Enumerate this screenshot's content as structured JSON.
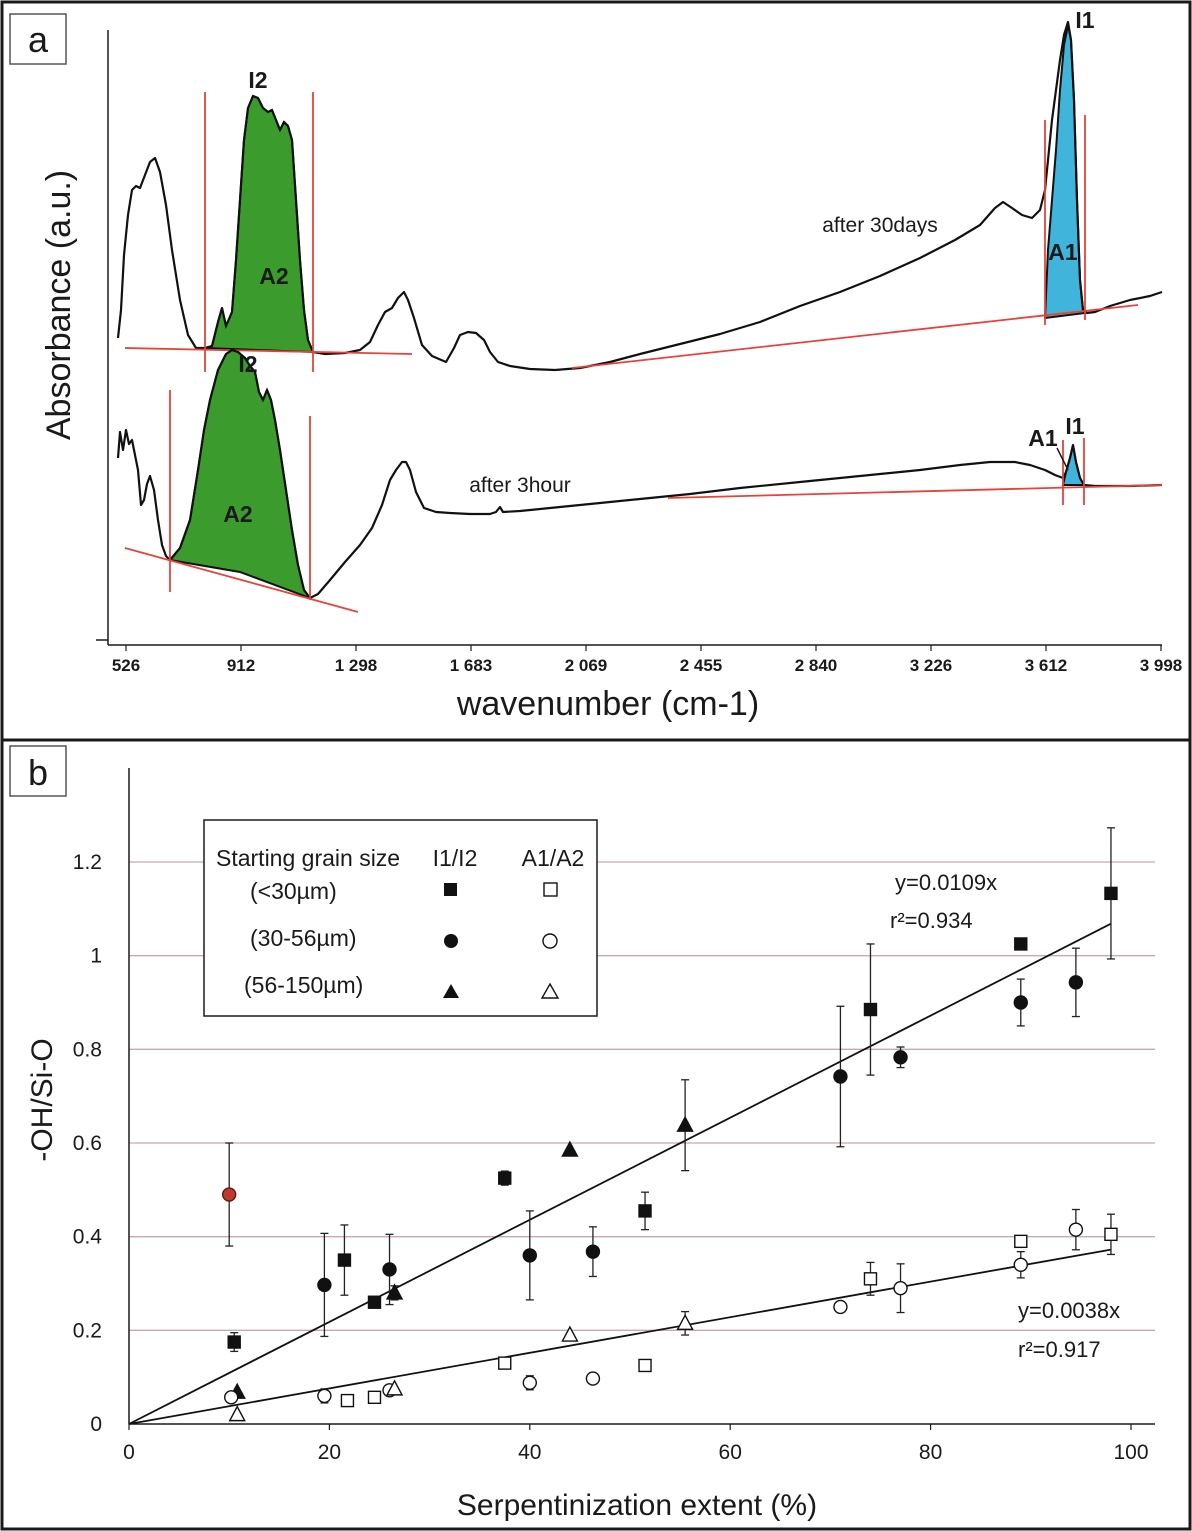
{
  "panel_a": {
    "tag": "a",
    "xlabel": "wavenumber (cm-1)",
    "ylabel": "Absorbance (a.u.)",
    "xticks": [
      "526",
      "912",
      "1 298",
      "1 683",
      "2 069",
      "2 455",
      "2 840",
      "3 226",
      "3 612",
      "3 998"
    ],
    "labels": {
      "top_spectrum": "after 30days",
      "bottom_spectrum": "after 3hour",
      "i1": "I1",
      "i2": "I2",
      "a1": "A1",
      "a2": "A2"
    },
    "colors": {
      "a2_band": "#3c9b2d",
      "a1_band": "#41b4dc",
      "baseline": "#e8423a"
    }
  },
  "chart_data": {
    "type": "scatter",
    "tag": "b",
    "xlabel": "Serpentinization extent (%)",
    "ylabel": "-OH/Si-O",
    "xlim": [
      0,
      100
    ],
    "ylim": [
      0,
      1.2
    ],
    "xticks": [
      "0",
      "20",
      "40",
      "60",
      "80",
      "100"
    ],
    "yticks": [
      "0",
      "0.2",
      "0.4",
      "0.6",
      "0.8",
      "1",
      "1.2"
    ],
    "grid": true,
    "legend": {
      "placement": "top-left",
      "header": [
        "Starting grain size",
        "I1/I2",
        "A1/A2"
      ],
      "rows": [
        "(<30µm)",
        "(30-56µm)",
        "(56-150µm)"
      ]
    },
    "fits": [
      {
        "slope": 0.0109,
        "label": "y=0.0109x",
        "r2_label": "r²=0.934",
        "x_end": 98
      },
      {
        "slope": 0.0038,
        "label": "y=0.0038x",
        "r2_label": "r²=0.917",
        "x_end": 98
      }
    ],
    "series": [
      {
        "name": "(<30µm) I1/I2",
        "marker": "square",
        "filled": true,
        "points": [
          [
            10.5,
            0.175,
            0.02
          ],
          [
            21.5,
            0.35,
            0.075
          ],
          [
            24.5,
            0.26,
            0
          ],
          [
            37.5,
            0.525,
            0.015
          ],
          [
            51.5,
            0.455,
            0.04
          ],
          [
            74,
            0.885,
            0.14
          ],
          [
            89,
            1.025,
            0
          ],
          [
            98,
            1.133,
            0.14
          ]
        ]
      },
      {
        "name": "(30-56µm) I1/I2",
        "marker": "circle",
        "filled": true,
        "points": [
          [
            19.5,
            0.297,
            0.11
          ],
          [
            26,
            0.33,
            0.075
          ],
          [
            40,
            0.36,
            0.095
          ],
          [
            46.3,
            0.368,
            0.053
          ],
          [
            71,
            0.742,
            0.15
          ],
          [
            77,
            0.783,
            0.022
          ],
          [
            89,
            0.9,
            0.05
          ],
          [
            94.5,
            0.943,
            0.073
          ]
        ]
      },
      {
        "name": "(30-56µm) I1/I2 highlighted",
        "marker": "circle",
        "filled": true,
        "color": "#c0392b",
        "points": [
          [
            10,
            0.49,
            0.11
          ]
        ]
      },
      {
        "name": "(56-150µm) I1/I2",
        "marker": "triangle",
        "filled": true,
        "points": [
          [
            10.8,
            0.068,
            0
          ],
          [
            26.5,
            0.28,
            0.015
          ],
          [
            44,
            0.585,
            0
          ],
          [
            55.5,
            0.638,
            0.097
          ]
        ]
      },
      {
        "name": "(<30µm) A1/A2",
        "marker": "square",
        "filled": false,
        "points": [
          [
            21.8,
            0.05,
            0
          ],
          [
            24.5,
            0.057,
            0
          ],
          [
            37.5,
            0.13,
            0
          ],
          [
            51.5,
            0.125,
            0
          ],
          [
            74,
            0.31,
            0.035
          ],
          [
            89,
            0.39,
            0
          ],
          [
            98,
            0.405,
            0.043
          ]
        ]
      },
      {
        "name": "(30-56µm) A1/A2",
        "marker": "circle",
        "filled": false,
        "points": [
          [
            10.2,
            0.057,
            0
          ],
          [
            19.5,
            0.06,
            0.015
          ],
          [
            26,
            0.072,
            0
          ],
          [
            40,
            0.088,
            0.015
          ],
          [
            46.3,
            0.097,
            0
          ],
          [
            71,
            0.25,
            0
          ],
          [
            77,
            0.29,
            0.052
          ],
          [
            89,
            0.34,
            0.028
          ],
          [
            94.5,
            0.415,
            0.043
          ]
        ]
      },
      {
        "name": "(56-150µm) A1/A2",
        "marker": "triangle",
        "filled": false,
        "points": [
          [
            10.8,
            0.02,
            0
          ],
          [
            26.5,
            0.075,
            0
          ],
          [
            44,
            0.19,
            0
          ],
          [
            55.5,
            0.215,
            0.025
          ]
        ]
      }
    ]
  }
}
